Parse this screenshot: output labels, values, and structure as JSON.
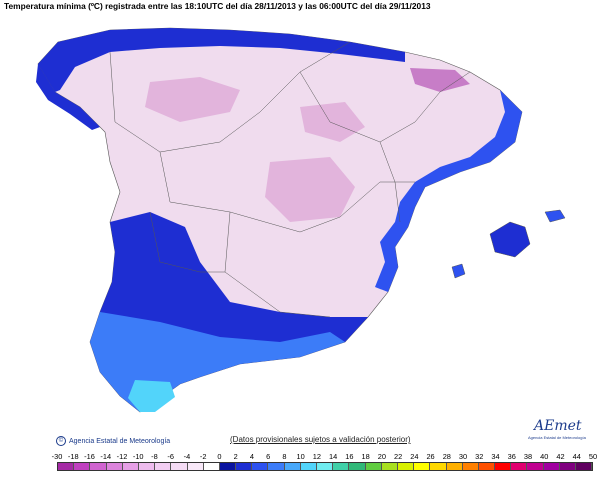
{
  "title": "Temperatura mínima (ºC) registrada entre las 18:10UTC del día 28/11/2013 y las 06:00UTC del día 29/11/2013",
  "footer_left": "Agencia Estatal de Meteorología",
  "disclaimer": "(Datos provisionales sujetos a validación posterior)",
  "logo_name": "AEmet",
  "logo_subtitle": "Agencia Estatal de Meteorología",
  "scale": {
    "labels": [
      "-30",
      "-18",
      "-16",
      "-14",
      "-12",
      "-10",
      "-8",
      "-6",
      "-4",
      "-2",
      "0",
      "2",
      "4",
      "6",
      "8",
      "10",
      "12",
      "14",
      "16",
      "18",
      "20",
      "22",
      "24",
      "26",
      "28",
      "30",
      "32",
      "34",
      "36",
      "38",
      "40",
      "42",
      "44",
      "50"
    ],
    "colors": [
      "#a52aa5",
      "#c040c0",
      "#d064d0",
      "#dc84dc",
      "#e6a0e6",
      "#eebcee",
      "#f2cef2",
      "#f5dcf5",
      "#f8e8f8",
      "#ffffff",
      "#0a14a0",
      "#1e2ed2",
      "#2e52f0",
      "#3c7cf8",
      "#48a8fa",
      "#52d4fa",
      "#70ecf0",
      "#40d0a8",
      "#30b878",
      "#60cc40",
      "#a8e020",
      "#d8f000",
      "#ffff00",
      "#ffd800",
      "#ffb000",
      "#ff8000",
      "#ff5000",
      "#ff0000",
      "#e00070",
      "#c00090",
      "#a000a0",
      "#800080",
      "#600060"
    ]
  },
  "colors": {
    "sea": "#ffffff",
    "cold": "#f0dcee",
    "very_cold": "#e2b4dc",
    "coast_mild": "#1e2ed2",
    "coast_warm": "#2e52f0",
    "south_warm": "#3c7cf8",
    "south_warmest": "#52d4fa",
    "border": "#555555"
  }
}
